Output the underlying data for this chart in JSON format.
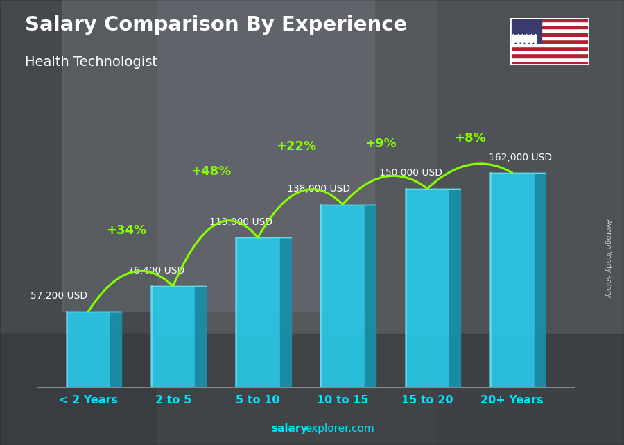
{
  "title": "Salary Comparison By Experience",
  "subtitle": "Health Technologist",
  "categories": [
    "< 2 Years",
    "2 to 5",
    "5 to 10",
    "10 to 15",
    "15 to 20",
    "20+ Years"
  ],
  "values": [
    57200,
    76400,
    113000,
    138000,
    150000,
    162000
  ],
  "labels": [
    "57,200 USD",
    "76,400 USD",
    "113,000 USD",
    "138,000 USD",
    "150,000 USD",
    "162,000 USD"
  ],
  "pct_changes": [
    "+34%",
    "+48%",
    "+22%",
    "+9%",
    "+8%"
  ],
  "bar_front_color": "#29c8e8",
  "bar_side_color": "#1a8fa8",
  "bar_top_color": "#5de0f0",
  "bg_color": "#5a6a70",
  "title_color": "#ffffff",
  "subtitle_color": "#ffffff",
  "label_color": "#ffffff",
  "pct_color": "#88ff00",
  "xlabel_color": "#00e5ff",
  "ylabel_text": "Average Yearly Salary",
  "footer_bold": "salary",
  "footer_normal": "explorer.com",
  "ylim": [
    0,
    195000
  ],
  "bar_width": 0.52,
  "side_depth": 0.13
}
